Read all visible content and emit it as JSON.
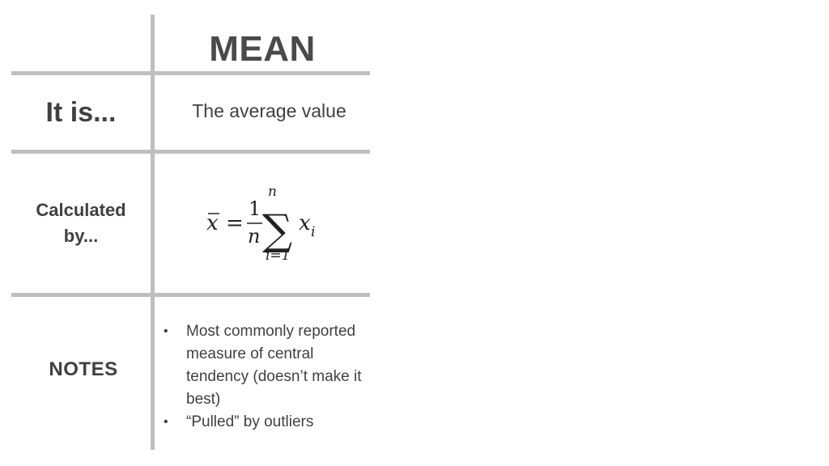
{
  "table": {
    "header": {
      "column_title": "MEAN"
    },
    "rows": [
      {
        "label": "It is...",
        "value": "The average value"
      },
      {
        "label_line1": "Calculated",
        "label_line2": "by...",
        "formula": {
          "lhs": "x",
          "equals": "=",
          "numerator": "1",
          "denominator": "n",
          "sum_upper": "n",
          "sum_symbol": "∑",
          "sum_lower": "i=1",
          "term_base": "x",
          "term_subscript": "i"
        }
      },
      {
        "label": "NOTES",
        "notes": [
          "Most commonly reported measure of central tendency (doesn’t make it best)",
          "“Pulled” by outliers"
        ]
      }
    ]
  }
}
